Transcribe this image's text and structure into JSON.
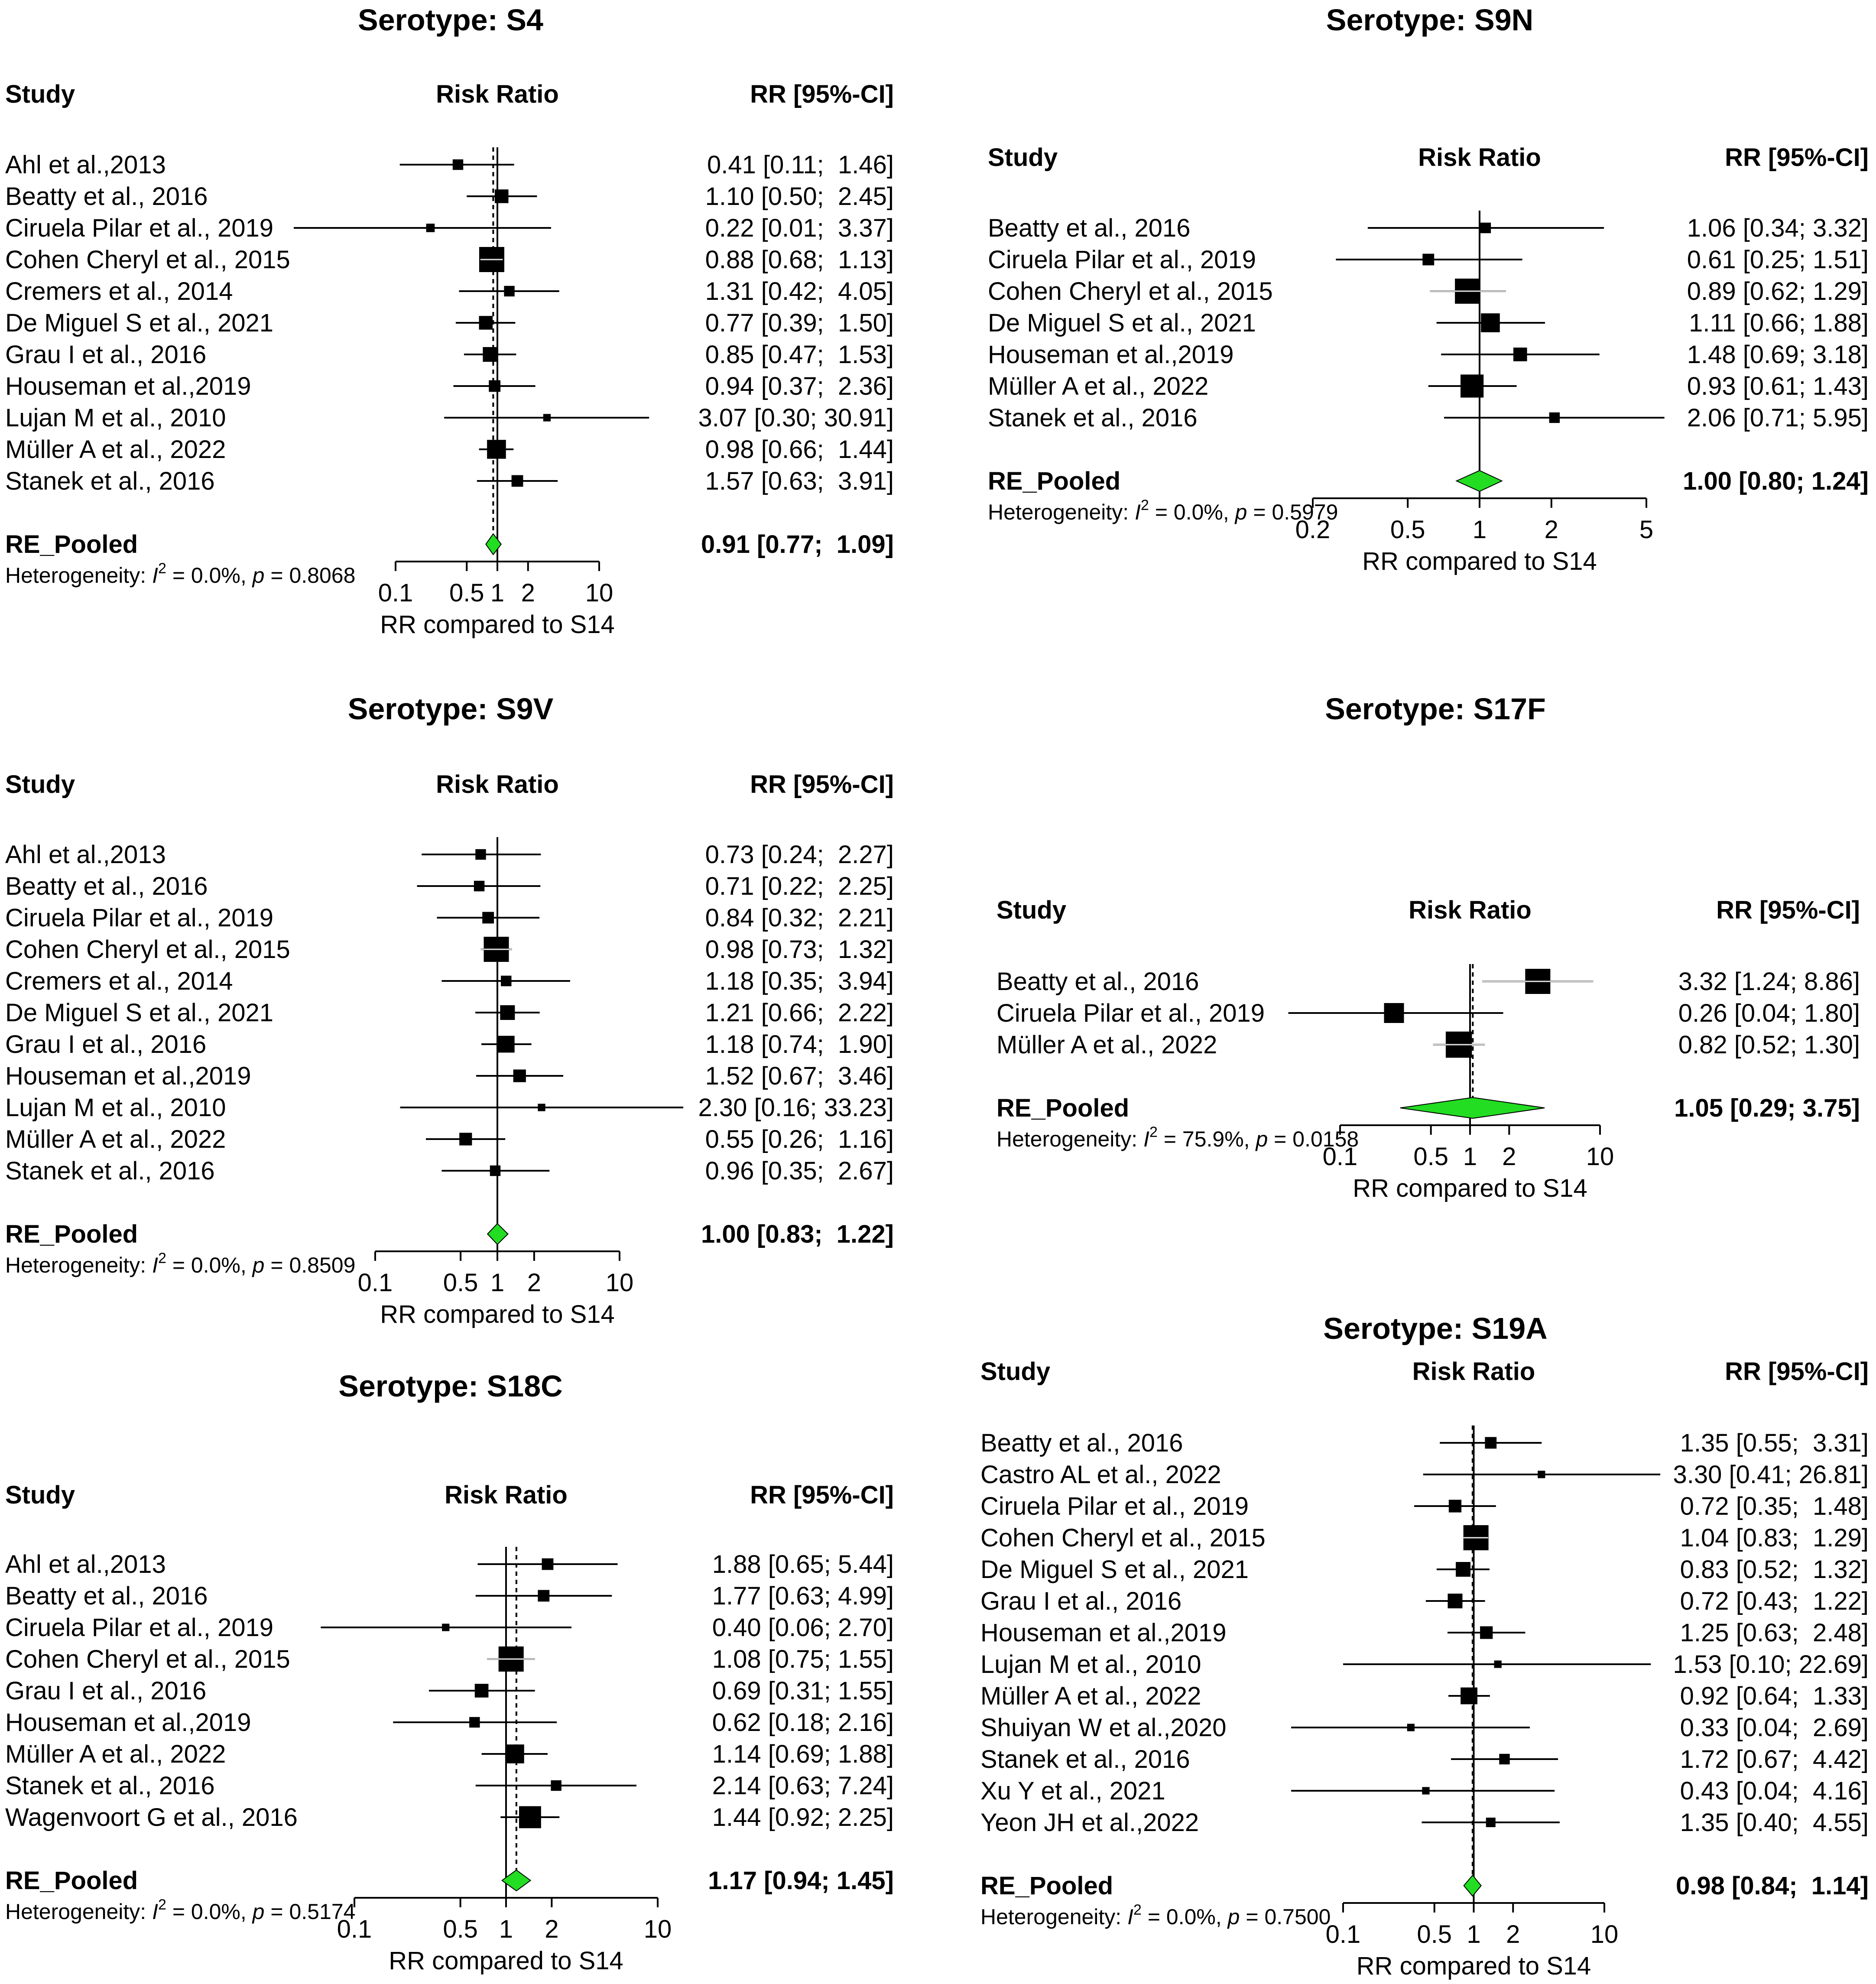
{
  "colors": {
    "diamond": "#22dd22",
    "ink": "#000000",
    "background": "#ffffff"
  },
  "chart_data": [
    {
      "type": "forest",
      "title": "Serotype: S4",
      "headers": {
        "study": "Study",
        "plot": "Risk Ratio",
        "rr": "RR [95%-CI]"
      },
      "xscale": "log",
      "xlim": [
        0.1,
        10
      ],
      "ticks": [
        "0.1",
        "0.5",
        "1",
        "2",
        "10"
      ],
      "xlabel": "RR compared to S14",
      "null_line": 1,
      "pooled_line": 0.91,
      "studies": [
        {
          "label": "Ahl et al.,2013",
          "rr": 0.41,
          "lo": 0.11,
          "hi": 1.46,
          "weight": 0.3,
          "text": "0.41 [0.11;  1.46]"
        },
        {
          "label": "Beatty et al., 2016",
          "rr": 1.1,
          "lo": 0.5,
          "hi": 2.45,
          "weight": 0.45,
          "text": "1.10 [0.50;  2.45]"
        },
        {
          "label": "Ciruela Pilar et al., 2019",
          "rr": 0.22,
          "lo": 0.01,
          "hi": 3.37,
          "weight": 0.2,
          "text": "0.22 [0.01;  3.37]"
        },
        {
          "label": "Cohen Cheryl et al., 2015",
          "rr": 0.88,
          "lo": 0.68,
          "hi": 1.13,
          "weight": 1.0,
          "text": "0.88 [0.68;  1.13]"
        },
        {
          "label": "Cremers et al., 2014",
          "rr": 1.31,
          "lo": 0.42,
          "hi": 4.05,
          "weight": 0.3,
          "text": "1.31 [0.42;  4.05]"
        },
        {
          "label": "De Miguel S et al., 2021",
          "rr": 0.77,
          "lo": 0.39,
          "hi": 1.5,
          "weight": 0.45,
          "text": "0.77 [0.39;  1.50]"
        },
        {
          "label": "Grau I et al., 2016",
          "rr": 0.85,
          "lo": 0.47,
          "hi": 1.53,
          "weight": 0.5,
          "text": "0.85 [0.47;  1.53]"
        },
        {
          "label": "Houseman et al.,2019",
          "rr": 0.94,
          "lo": 0.37,
          "hi": 2.36,
          "weight": 0.35,
          "text": "0.94 [0.37;  2.36]"
        },
        {
          "label": "Lujan M et al., 2010",
          "rr": 3.07,
          "lo": 0.3,
          "hi": 30.91,
          "weight": 0.15,
          "text": "3.07 [0.30; 30.91]"
        },
        {
          "label": "Müller A et al., 2022",
          "rr": 0.98,
          "lo": 0.66,
          "hi": 1.44,
          "weight": 0.7,
          "text": "0.98 [0.66;  1.44]"
        },
        {
          "label": "Stanek et al., 2016",
          "rr": 1.57,
          "lo": 0.63,
          "hi": 3.91,
          "weight": 0.35,
          "text": "1.57 [0.63;  3.91]"
        }
      ],
      "pooled": {
        "label": "RE_Pooled",
        "rr": 0.91,
        "lo": 0.77,
        "hi": 1.09,
        "text": "0.91 [0.77;  1.09]"
      },
      "heterogeneity": {
        "prefix": "Heterogeneity: ",
        "i2_symbol": "I",
        "i2_exponent": "2",
        "rest": " = 0.0%, ",
        "p_symbol": "p",
        "p_value": " = 0.8068"
      }
    },
    {
      "type": "forest",
      "title": "Serotype: S9N",
      "headers": {
        "study": "Study",
        "plot": "Risk Ratio",
        "rr": "RR [95%-CI]"
      },
      "xscale": "log",
      "xlim": [
        0.2,
        5
      ],
      "ticks": [
        "0.2",
        "0.5",
        "1",
        "2",
        "5"
      ],
      "xlabel": "RR compared to S14",
      "null_line": 1,
      "pooled_line": 1.0,
      "studies": [
        {
          "label": "Beatty et al., 2016",
          "rr": 1.06,
          "lo": 0.34,
          "hi": 3.32,
          "weight": 0.3,
          "text": "1.06 [0.34; 3.32]"
        },
        {
          "label": "Ciruela Pilar et al., 2019",
          "rr": 0.61,
          "lo": 0.25,
          "hi": 1.51,
          "weight": 0.35,
          "text": "0.61 [0.25; 1.51]"
        },
        {
          "label": "Cohen Cheryl et al., 2015",
          "rr": 0.89,
          "lo": 0.62,
          "hi": 1.29,
          "weight": 1.0,
          "text": "0.89 [0.62; 1.29]"
        },
        {
          "label": "De Miguel S et al., 2021",
          "rr": 1.11,
          "lo": 0.66,
          "hi": 1.88,
          "weight": 0.7,
          "text": "1.11 [0.66; 1.88]"
        },
        {
          "label": "Houseman et al.,2019",
          "rr": 1.48,
          "lo": 0.69,
          "hi": 3.18,
          "weight": 0.45,
          "text": "1.48 [0.69; 3.18]"
        },
        {
          "label": "Müller A et al., 2022",
          "rr": 0.93,
          "lo": 0.61,
          "hi": 1.43,
          "weight": 0.9,
          "text": "0.93 [0.61; 1.43]"
        },
        {
          "label": "Stanek et al., 2016",
          "rr": 2.06,
          "lo": 0.71,
          "hi": 5.95,
          "weight": 0.3,
          "text": "2.06 [0.71; 5.95]"
        }
      ],
      "pooled": {
        "label": "RE_Pooled",
        "rr": 1.0,
        "lo": 0.8,
        "hi": 1.24,
        "text": "1.00 [0.80; 1.24]"
      },
      "heterogeneity": {
        "prefix": "Heterogeneity: ",
        "i2_symbol": "I",
        "i2_exponent": "2",
        "rest": " = 0.0%, ",
        "p_symbol": "p",
        "p_value": " = 0.5979"
      }
    },
    {
      "type": "forest",
      "title": "Serotype: S9V",
      "headers": {
        "study": "Study",
        "plot": "Risk Ratio",
        "rr": "RR [95%-CI]"
      },
      "xscale": "log",
      "xlim": [
        0.1,
        10
      ],
      "ticks": [
        "0.1",
        "0.5",
        "1",
        "2",
        "10"
      ],
      "xlabel": "RR compared to S14",
      "null_line": 1,
      "pooled_line": 1.0,
      "studies": [
        {
          "label": "Ahl et al.,2013",
          "rr": 0.73,
          "lo": 0.24,
          "hi": 2.27,
          "weight": 0.3,
          "text": "0.73 [0.24;  2.27]"
        },
        {
          "label": "Beatty et al., 2016",
          "rr": 0.71,
          "lo": 0.22,
          "hi": 2.25,
          "weight": 0.3,
          "text": "0.71 [0.22;  2.25]"
        },
        {
          "label": "Ciruela Pilar et al., 2019",
          "rr": 0.84,
          "lo": 0.32,
          "hi": 2.21,
          "weight": 0.35,
          "text": "0.84 [0.32;  2.21]"
        },
        {
          "label": "Cohen Cheryl et al., 2015",
          "rr": 0.98,
          "lo": 0.73,
          "hi": 1.32,
          "weight": 1.0,
          "text": "0.98 [0.73;  1.32]"
        },
        {
          "label": "Cremers et al., 2014",
          "rr": 1.18,
          "lo": 0.35,
          "hi": 3.94,
          "weight": 0.3,
          "text": "1.18 [0.35;  3.94]"
        },
        {
          "label": "De Miguel S et al., 2021",
          "rr": 1.21,
          "lo": 0.66,
          "hi": 2.22,
          "weight": 0.5,
          "text": "1.21 [0.66;  2.22]"
        },
        {
          "label": "Grau I et al., 2016",
          "rr": 1.18,
          "lo": 0.74,
          "hi": 1.9,
          "weight": 0.6,
          "text": "1.18 [0.74;  1.90]"
        },
        {
          "label": "Houseman et al.,2019",
          "rr": 1.52,
          "lo": 0.67,
          "hi": 3.46,
          "weight": 0.4,
          "text": "1.52 [0.67;  3.46]"
        },
        {
          "label": "Lujan M et al., 2010",
          "rr": 2.3,
          "lo": 0.16,
          "hi": 33.23,
          "weight": 0.15,
          "text": "2.30 [0.16; 33.23]"
        },
        {
          "label": "Müller A et al., 2022",
          "rr": 0.55,
          "lo": 0.26,
          "hi": 1.16,
          "weight": 0.4,
          "text": "0.55 [0.26;  1.16]"
        },
        {
          "label": "Stanek et al., 2016",
          "rr": 0.96,
          "lo": 0.35,
          "hi": 2.67,
          "weight": 0.3,
          "text": "0.96 [0.35;  2.67]"
        }
      ],
      "pooled": {
        "label": "RE_Pooled",
        "rr": 1.0,
        "lo": 0.83,
        "hi": 1.22,
        "text": "1.00 [0.83;  1.22]"
      },
      "heterogeneity": {
        "prefix": "Heterogeneity: ",
        "i2_symbol": "I",
        "i2_exponent": "2",
        "rest": " = 0.0%, ",
        "p_symbol": "p",
        "p_value": " = 0.8509"
      }
    },
    {
      "type": "forest",
      "title": "Serotype: S17F",
      "headers": {
        "study": "Study",
        "plot": "Risk Ratio",
        "rr": "RR [95%-CI]"
      },
      "xscale": "log",
      "xlim": [
        0.1,
        10
      ],
      "ticks": [
        "0.1",
        "0.5",
        "1",
        "2",
        "10"
      ],
      "xlabel": "RR compared to S14",
      "null_line": 1,
      "pooled_line": 1.05,
      "studies": [
        {
          "label": "Beatty et al., 2016",
          "rr": 3.32,
          "lo": 1.24,
          "hi": 8.86,
          "weight": 1.0,
          "text": "3.32 [1.24; 8.86]"
        },
        {
          "label": "Ciruela Pilar et al., 2019",
          "rr": 0.26,
          "lo": 0.04,
          "hi": 1.8,
          "weight": 0.75,
          "text": "0.26 [0.04; 1.80]"
        },
        {
          "label": "Müller A et al., 2022",
          "rr": 0.82,
          "lo": 0.52,
          "hi": 1.3,
          "weight": 1.05,
          "text": "0.82 [0.52; 1.30]"
        }
      ],
      "pooled": {
        "label": "RE_Pooled",
        "rr": 1.05,
        "lo": 0.29,
        "hi": 3.75,
        "text": "1.05 [0.29; 3.75]"
      },
      "heterogeneity": {
        "prefix": "Heterogeneity: ",
        "i2_symbol": "I",
        "i2_exponent": "2",
        "rest": " = 75.9%, ",
        "p_symbol": "p",
        "p_value": " = 0.0158"
      }
    },
    {
      "type": "forest",
      "title": "Serotype: S18C",
      "headers": {
        "study": "Study",
        "plot": "Risk Ratio",
        "rr": "RR [95%-CI]"
      },
      "xscale": "log",
      "xlim": [
        0.1,
        10
      ],
      "ticks": [
        "0.1",
        "0.5",
        "1",
        "2",
        "10"
      ],
      "xlabel": "RR compared to S14",
      "null_line": 1,
      "pooled_line": 1.17,
      "studies": [
        {
          "label": "Ahl et al.,2013",
          "rr": 1.88,
          "lo": 0.65,
          "hi": 5.44,
          "weight": 0.35,
          "text": "1.88 [0.65; 5.44]"
        },
        {
          "label": "Beatty et al., 2016",
          "rr": 1.77,
          "lo": 0.63,
          "hi": 4.99,
          "weight": 0.35,
          "text": "1.77 [0.63; 4.99]"
        },
        {
          "label": "Ciruela Pilar et al., 2019",
          "rr": 0.4,
          "lo": 0.06,
          "hi": 2.7,
          "weight": 0.15,
          "text": "0.40 [0.06; 2.70]"
        },
        {
          "label": "Cohen Cheryl et al., 2015",
          "rr": 1.08,
          "lo": 0.75,
          "hi": 1.55,
          "weight": 1.0,
          "text": "1.08 [0.75; 1.55]"
        },
        {
          "label": "Grau I et al., 2016",
          "rr": 0.69,
          "lo": 0.31,
          "hi": 1.55,
          "weight": 0.45,
          "text": "0.69 [0.31; 1.55]"
        },
        {
          "label": "Houseman et al.,2019",
          "rr": 0.62,
          "lo": 0.18,
          "hi": 2.16,
          "weight": 0.3,
          "text": "0.62 [0.18; 2.16]"
        },
        {
          "label": "Müller A et al., 2022",
          "rr": 1.14,
          "lo": 0.69,
          "hi": 1.88,
          "weight": 0.7,
          "text": "1.14 [0.69; 1.88]"
        },
        {
          "label": "Stanek et al., 2016",
          "rr": 2.14,
          "lo": 0.63,
          "hi": 7.24,
          "weight": 0.3,
          "text": "2.14 [0.63; 7.24]"
        },
        {
          "label": "Wagenvoort G et al., 2016",
          "rr": 1.44,
          "lo": 0.92,
          "hi": 2.25,
          "weight": 0.85,
          "text": "1.44 [0.92; 2.25]"
        }
      ],
      "pooled": {
        "label": "RE_Pooled",
        "rr": 1.17,
        "lo": 0.94,
        "hi": 1.45,
        "text": "1.17 [0.94; 1.45]"
      },
      "heterogeneity": {
        "prefix": "Heterogeneity: ",
        "i2_symbol": "I",
        "i2_exponent": "2",
        "rest": " = 0.0%, ",
        "p_symbol": "p",
        "p_value": " = 0.5174"
      }
    },
    {
      "type": "forest",
      "title": "Serotype: S19A",
      "headers": {
        "study": "Study",
        "plot": "Risk Ratio",
        "rr": "RR [95%-CI]"
      },
      "xscale": "log",
      "xlim": [
        0.1,
        10
      ],
      "ticks": [
        "0.1",
        "0.5",
        "1",
        "2",
        "10"
      ],
      "xlabel": "RR compared to S14",
      "null_line": 1,
      "pooled_line": 0.98,
      "studies": [
        {
          "label": "Beatty et al., 2016",
          "rr": 1.35,
          "lo": 0.55,
          "hi": 3.31,
          "weight": 0.35,
          "text": "1.35 [0.55;  3.31]"
        },
        {
          "label": "Castro AL et al., 2022",
          "rr": 3.3,
          "lo": 0.41,
          "hi": 26.81,
          "weight": 0.15,
          "text": "3.30 [0.41; 26.81]"
        },
        {
          "label": "Ciruela Pilar et al., 2019",
          "rr": 0.72,
          "lo": 0.35,
          "hi": 1.48,
          "weight": 0.4,
          "text": "0.72 [0.35;  1.48]"
        },
        {
          "label": "Cohen Cheryl et al., 2015",
          "rr": 1.04,
          "lo": 0.83,
          "hi": 1.29,
          "weight": 1.0,
          "text": "1.04 [0.83;  1.29]"
        },
        {
          "label": "De Miguel S et al., 2021",
          "rr": 0.83,
          "lo": 0.52,
          "hi": 1.32,
          "weight": 0.5,
          "text": "0.83 [0.52;  1.32]"
        },
        {
          "label": "Grau I et al., 2016",
          "rr": 0.72,
          "lo": 0.43,
          "hi": 1.22,
          "weight": 0.5,
          "text": "0.72 [0.43;  1.22]"
        },
        {
          "label": "Houseman et al.,2019",
          "rr": 1.25,
          "lo": 0.63,
          "hi": 2.48,
          "weight": 0.4,
          "text": "1.25 [0.63;  2.48]"
        },
        {
          "label": "Lujan M et al., 2010",
          "rr": 1.53,
          "lo": 0.1,
          "hi": 22.69,
          "weight": 0.15,
          "text": "1.53 [0.10; 22.69]"
        },
        {
          "label": "Müller A et al., 2022",
          "rr": 0.92,
          "lo": 0.64,
          "hi": 1.33,
          "weight": 0.6,
          "text": "0.92 [0.64;  1.33]"
        },
        {
          "label": "Shuiyan W et al.,2020",
          "rr": 0.33,
          "lo": 0.04,
          "hi": 2.69,
          "weight": 0.15,
          "text": "0.33 [0.04;  2.69]"
        },
        {
          "label": "Stanek et al., 2016",
          "rr": 1.72,
          "lo": 0.67,
          "hi": 4.42,
          "weight": 0.3,
          "text": "1.72 [0.67;  4.42]"
        },
        {
          "label": "Xu Y et al., 2021",
          "rr": 0.43,
          "lo": 0.04,
          "hi": 4.16,
          "weight": 0.15,
          "text": "0.43 [0.04;  4.16]"
        },
        {
          "label": "Yeon JH et al.,2022",
          "rr": 1.35,
          "lo": 0.4,
          "hi": 4.55,
          "weight": 0.25,
          "text": "1.35 [0.40;  4.55]"
        }
      ],
      "pooled": {
        "label": "RE_Pooled",
        "rr": 0.98,
        "lo": 0.84,
        "hi": 1.14,
        "text": "0.98 [0.84;  1.14]"
      },
      "heterogeneity": {
        "prefix": "Heterogeneity: ",
        "i2_symbol": "I",
        "i2_exponent": "2",
        "rest": " = 0.0%, ",
        "p_symbol": "p",
        "p_value": " = 0.7500"
      }
    }
  ]
}
